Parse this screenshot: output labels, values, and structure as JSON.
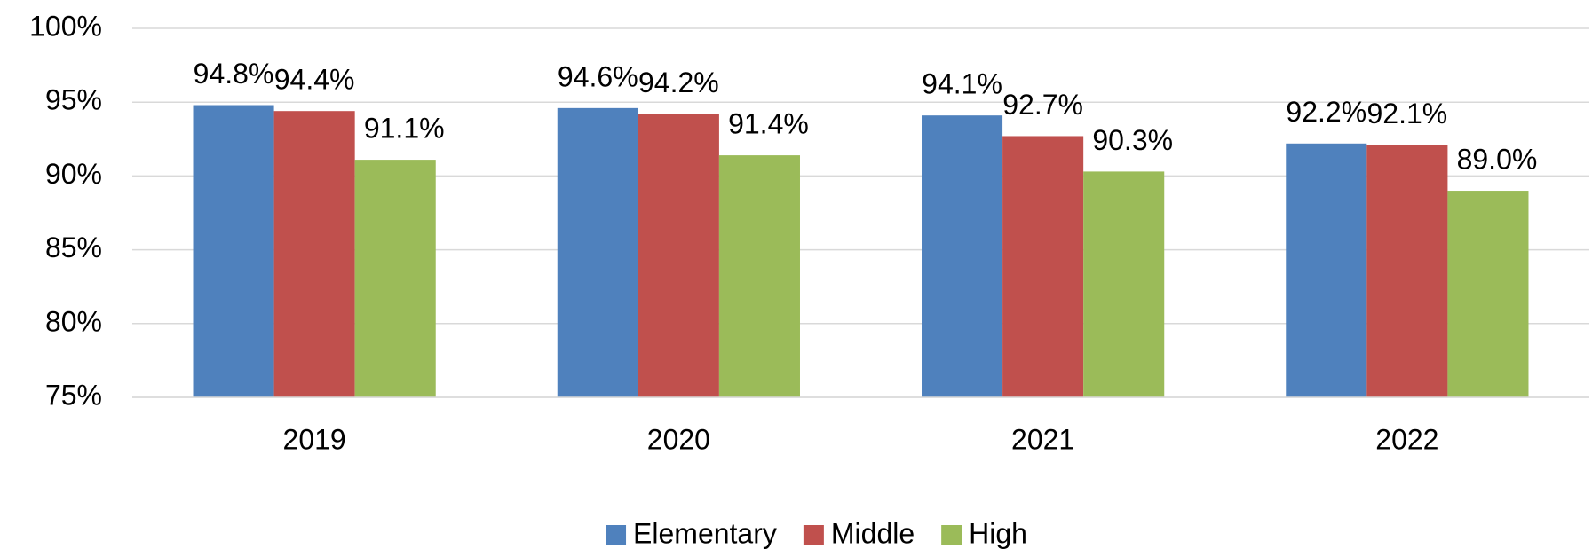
{
  "chart_data": {
    "type": "bar",
    "categories": [
      "2019",
      "2020",
      "2021",
      "2022"
    ],
    "series": [
      {
        "name": "Elementary",
        "color": "#4f81bd",
        "values": [
          94.8,
          94.6,
          94.1,
          92.2
        ],
        "value_labels": [
          "94.8%",
          "94.6%",
          "94.1%",
          "92.2%"
        ]
      },
      {
        "name": "Middle",
        "color": "#c0504d",
        "values": [
          94.4,
          94.2,
          92.7,
          92.1
        ],
        "value_labels": [
          "94.4%",
          "94.2%",
          "92.7%",
          "92.1%"
        ]
      },
      {
        "name": "High",
        "color": "#9bbb59",
        "values": [
          91.1,
          91.4,
          90.3,
          89.0
        ],
        "value_labels": [
          "91.1%",
          "91.4%",
          "90.3%",
          "89.0%"
        ]
      }
    ],
    "ylim": [
      75,
      100
    ],
    "yticks": [
      {
        "value": 75,
        "label": "75%"
      },
      {
        "value": 80,
        "label": "80%"
      },
      {
        "value": 85,
        "label": "85%"
      },
      {
        "value": 90,
        "label": "90%"
      },
      {
        "value": 95,
        "label": "95%"
      },
      {
        "value": 100,
        "label": "100%"
      }
    ],
    "grid": true,
    "legend": "bottom"
  }
}
